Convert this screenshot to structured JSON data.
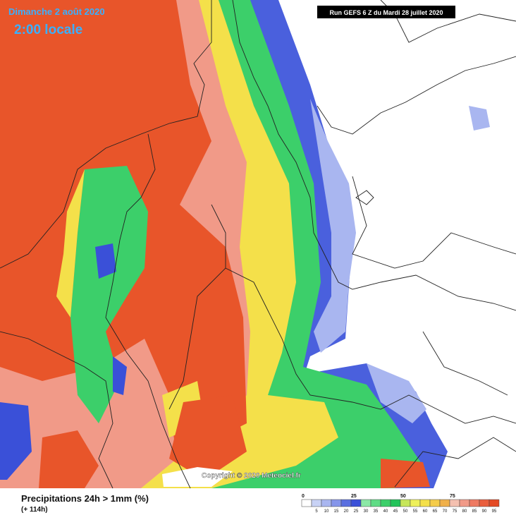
{
  "header": {
    "date": "Dimanche 2 août 2020",
    "time": "2:00 locale",
    "run": "Run GEFS 6 Z du Mardi 28 juillet 2020"
  },
  "map": {
    "copyright": "Copyright © 2020 Meteociel.fr"
  },
  "legend": {
    "title": "Precipitations 24h > 1mm (%)",
    "lead": "(+ 114h)",
    "major_labels": [
      0,
      25,
      50,
      75
    ],
    "minor_labels": [
      5,
      10,
      15,
      20,
      25,
      30,
      35,
      40,
      45,
      50,
      55,
      60,
      65,
      70,
      75,
      80,
      85,
      90,
      95
    ],
    "colors": [
      "#ffffff",
      "#c8d2f5",
      "#a9b6f0",
      "#8595ea",
      "#5a6fe0",
      "#3a50d8",
      "#8be8a6",
      "#5fdc85",
      "#3ccf6a",
      "#22c35a",
      "#c6e65a",
      "#eef05a",
      "#f4e04a",
      "#f5cc4a",
      "#f0b04a",
      "#f4c0b0",
      "#f19a88",
      "#ee7a62",
      "#ea5f3e",
      "#e44a24"
    ]
  }
}
